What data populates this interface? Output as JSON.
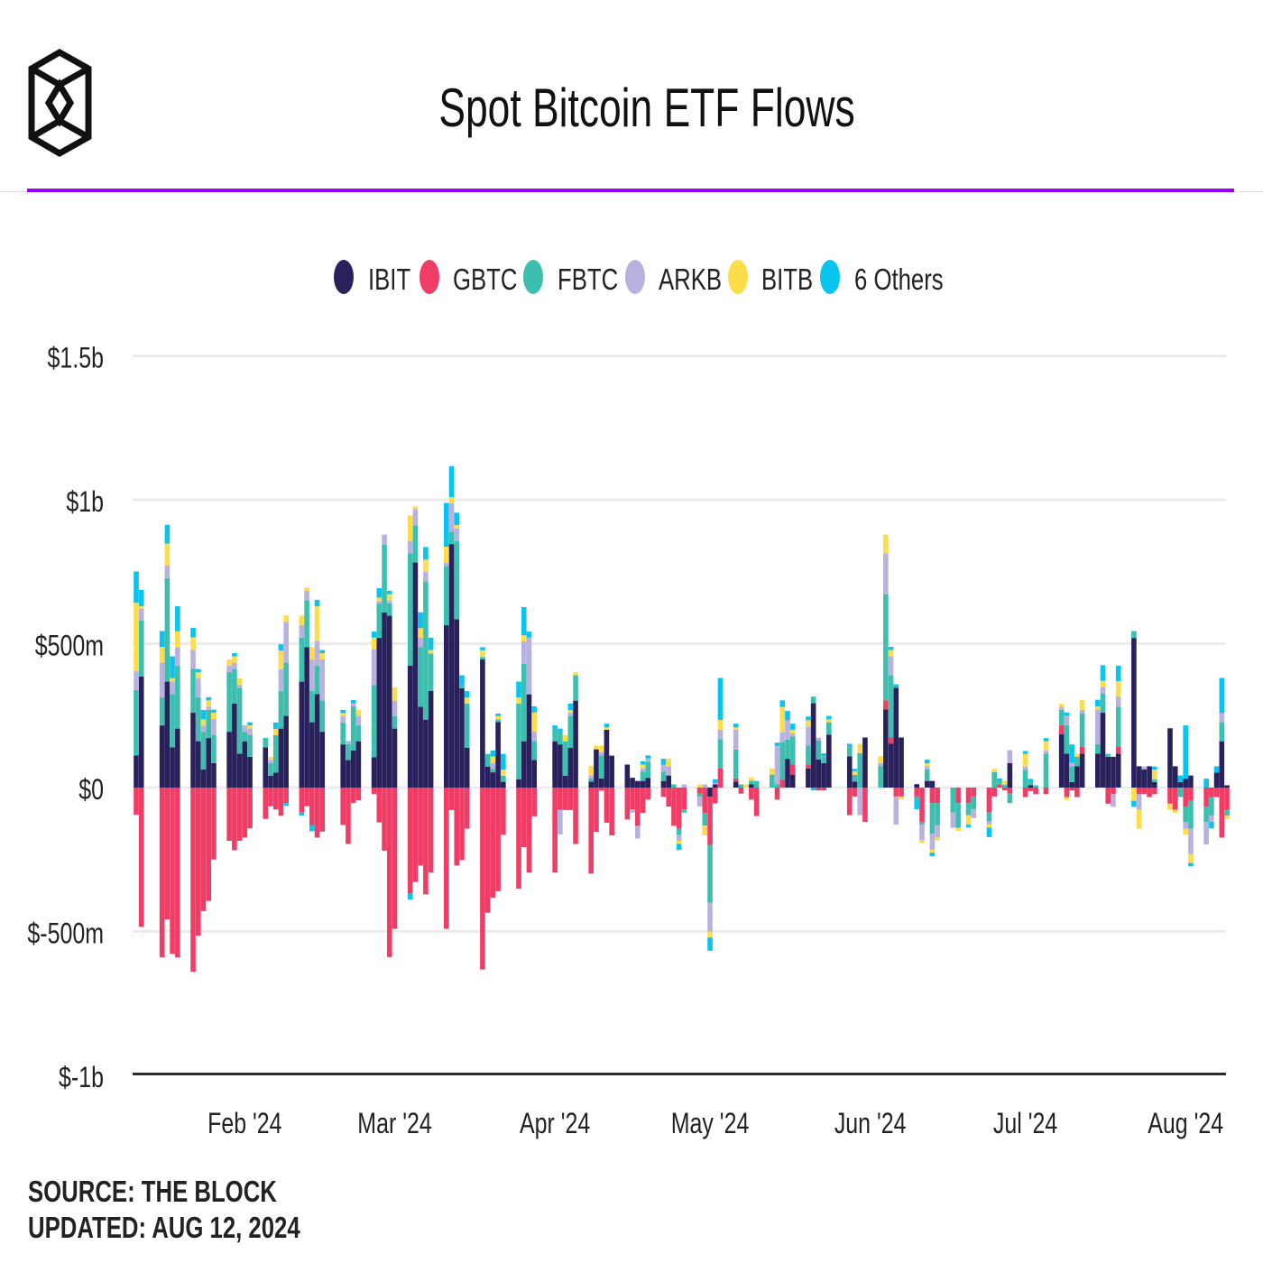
{
  "header": {
    "title": "Spot Bitcoin ETF Flows",
    "logo": "the-block-hexagon-logo",
    "accent_line_color": "#9900ff"
  },
  "footer": {
    "source": "SOURCE: THE BLOCK",
    "updated": "UPDATED: AUG 12, 2024"
  },
  "chart_data": {
    "type": "bar",
    "stacked": true,
    "title": "Spot Bitcoin ETF Flows",
    "unit": "USD millions",
    "xlabel": "",
    "ylabel": "",
    "ylim": [
      -1000,
      1500
    ],
    "grid": true,
    "legend_position": "top",
    "series": [
      {
        "name": "IBIT",
        "color": "#28215c"
      },
      {
        "name": "GBTC",
        "color": "#f03d66"
      },
      {
        "name": "FBTC",
        "color": "#3dbfb0"
      },
      {
        "name": "ARKB",
        "color": "#b8b2e0"
      },
      {
        "name": "BITB",
        "color": "#fddd4a"
      },
      {
        "name": "6 Others",
        "color": "#08c4ee"
      }
    ],
    "y_ticks": [
      {
        "value": 1500,
        "label": "$1.5b"
      },
      {
        "value": 1000,
        "label": "$1b"
      },
      {
        "value": 500,
        "label": "$500m"
      },
      {
        "value": 0,
        "label": "$0"
      },
      {
        "value": -500,
        "label": "$-500m"
      },
      {
        "value": -1000,
        "label": "$-1b"
      }
    ],
    "x_ticks": [
      {
        "date": "2024-02-01",
        "label": "Feb '24"
      },
      {
        "date": "2024-03-01",
        "label": "Mar '24"
      },
      {
        "date": "2024-04-01",
        "label": "Apr '24"
      },
      {
        "date": "2024-05-01",
        "label": "May '24"
      },
      {
        "date": "2024-06-01",
        "label": "Jun '24"
      },
      {
        "date": "2024-07-01",
        "label": "Jul '24"
      },
      {
        "date": "2024-08-01",
        "label": "Aug '24"
      }
    ],
    "row_columns": [
      "date",
      "IBIT",
      "GBTC",
      "FBTC",
      "ARKB",
      "BITB",
      "6 Others"
    ],
    "rows": [
      [
        "2024-01-11",
        112,
        -95,
        227,
        65,
        238,
        109
      ],
      [
        "2024-01-12",
        386,
        -484,
        195,
        41,
        8,
        57
      ],
      [
        "2024-01-16",
        216,
        -590,
        98,
        120,
        55,
        55
      ],
      [
        "2024-01-17",
        368,
        -458,
        360,
        44,
        76,
        65
      ],
      [
        "2024-01-18",
        140,
        -578,
        185,
        44,
        11,
        76
      ],
      [
        "2024-01-19",
        205,
        -590,
        218,
        65,
        55,
        87
      ],
      [
        "2024-01-22",
        260,
        -640,
        153,
        65,
        44,
        33
      ],
      [
        "2024-01-23",
        161,
        -515,
        153,
        65,
        22,
        11
      ],
      [
        "2024-01-24",
        63,
        -429,
        130,
        22,
        22,
        33
      ],
      [
        "2024-01-25",
        172,
        -394,
        98,
        11,
        22,
        11
      ],
      [
        "2024-01-26",
        85,
        -250,
        98,
        55,
        22,
        11
      ],
      [
        "2024-01-29",
        194,
        -185,
        207,
        22,
        22,
        0
      ],
      [
        "2024-01-30",
        292,
        -218,
        120,
        22,
        22,
        11
      ],
      [
        "2024-01-31",
        118,
        -185,
        229,
        11,
        22,
        0
      ],
      [
        "2024-02-01",
        161,
        -174,
        33,
        22,
        0,
        0
      ],
      [
        "2024-02-02",
        107,
        -142,
        76,
        22,
        11,
        11
      ],
      [
        "2024-02-05",
        140,
        -109,
        33,
        0,
        0,
        0
      ],
      [
        "2024-02-06",
        41,
        -65,
        44,
        11,
        11,
        0
      ],
      [
        "2024-02-07",
        52,
        -76,
        130,
        0,
        22,
        22
      ],
      [
        "2024-02-08",
        205,
        -98,
        130,
        76,
        65,
        22
      ],
      [
        "2024-02-09",
        249,
        -54,
        185,
        142,
        22,
        -10
      ],
      [
        "2024-02-12",
        368,
        -87,
        153,
        44,
        33,
        -11
      ],
      [
        "2024-02-13",
        488,
        -65,
        163,
        33,
        11,
        0
      ],
      [
        "2024-02-14",
        227,
        -130,
        109,
        109,
        44,
        -22
      ],
      [
        "2024-02-15",
        325,
        -174,
        98,
        87,
        120,
        22
      ],
      [
        "2024-02-16",
        194,
        -153,
        109,
        142,
        22,
        11
      ],
      [
        "2024-02-20",
        150,
        -130,
        76,
        22,
        11,
        11
      ],
      [
        "2024-02-21",
        96,
        -196,
        55,
        11,
        0,
        0
      ],
      [
        "2024-02-22",
        129,
        -54,
        153,
        11,
        0,
        11
      ],
      [
        "2024-02-23",
        161,
        -44,
        55,
        33,
        22,
        0
      ],
      [
        "2024-02-26",
        105,
        -23,
        252,
        123,
        41,
        21
      ],
      [
        "2024-02-27",
        520,
        -121,
        119,
        9,
        12,
        33
      ],
      [
        "2024-02-28",
        608,
        -219,
        236,
        35,
        0,
        0
      ],
      [
        "2024-02-29",
        597,
        -589,
        43,
        9,
        23,
        12
      ],
      [
        "2024-03-01",
        205,
        -491,
        43,
        54,
        46,
        0
      ],
      [
        "2024-03-04",
        424,
        -368,
        390,
        44,
        88,
        -21
      ],
      [
        "2024-03-05",
        782,
        -328,
        129,
        57,
        9,
        0
      ],
      [
        "2024-03-06",
        281,
        -271,
        207,
        33,
        33,
        55
      ],
      [
        "2024-03-07",
        236,
        -371,
        480,
        33,
        43,
        44
      ],
      [
        "2024-03-08",
        336,
        -295,
        130,
        0,
        12,
        43
      ],
      [
        "2024-03-11",
        564,
        -491,
        206,
        12,
        55,
        152
      ],
      [
        "2024-03-12",
        846,
        -78,
        43,
        99,
        21,
        108
      ],
      [
        "2024-03-13",
        585,
        -271,
        271,
        44,
        12,
        43
      ],
      [
        "2024-03-14",
        345,
        -252,
        12,
        0,
        0,
        33
      ],
      [
        "2024-03-15",
        138,
        -143,
        154,
        0,
        21,
        22
      ],
      [
        "2024-03-18",
        445,
        -632,
        9,
        0,
        23,
        11
      ],
      [
        "2024-03-19",
        73,
        -435,
        44,
        0,
        0,
        0
      ],
      [
        "2024-03-20",
        53,
        -383,
        12,
        20,
        23,
        21
      ],
      [
        "2024-03-21",
        228,
        -360,
        9,
        0,
        11,
        9
      ],
      [
        "2024-03-22",
        20,
        -164,
        21,
        0,
        21,
        55
      ],
      [
        "2024-03-25",
        29,
        -351,
        263,
        0,
        21,
        55
      ],
      [
        "2024-03-26",
        161,
        -207,
        269,
        78,
        21,
        98
      ],
      [
        "2024-03-27",
        324,
        -295,
        0,
        197,
        0,
        21
      ],
      [
        "2024-03-28",
        96,
        -100,
        66,
        32,
        67,
        21
      ],
      [
        "2024-04-01",
        161,
        -295,
        43,
        0,
        0,
        12
      ],
      [
        "2024-04-02",
        150,
        -78,
        43,
        -85,
        0,
        12
      ],
      [
        "2024-04-03",
        41,
        -78,
        120,
        0,
        22,
        0
      ],
      [
        "2024-04-04",
        138,
        -78,
        110,
        12,
        9,
        23
      ],
      [
        "2024-04-05",
        302,
        -196,
        88,
        0,
        11,
        0
      ],
      [
        "2024-04-08",
        21,
        -299,
        10,
        11,
        34,
        0
      ],
      [
        "2024-04-09",
        133,
        -154,
        0,
        0,
        13,
        0
      ],
      [
        "2024-04-10",
        32,
        -11,
        80,
        11,
        23,
        0
      ],
      [
        "2024-04-11",
        201,
        -122,
        0,
        0,
        8,
        13
      ],
      [
        "2024-04-12",
        111,
        -166,
        0,
        0,
        0,
        0
      ],
      [
        "2024-04-15",
        80,
        -111,
        0,
        0,
        0,
        0
      ],
      [
        "2024-04-16",
        34,
        -76,
        0,
        -11,
        0,
        0
      ],
      [
        "2024-04-17",
        23,
        -133,
        0,
        -44,
        0,
        0
      ],
      [
        "2024-04-18",
        23,
        -88,
        32,
        11,
        14,
        11
      ],
      [
        "2024-04-19",
        34,
        -42,
        56,
        11,
        0,
        11
      ],
      [
        "2024-04-22",
        23,
        -32,
        32,
        24,
        0,
        21
      ],
      [
        "2024-04-23",
        42,
        -66,
        0,
        32,
        27,
        0
      ],
      [
        "2024-04-24",
        0,
        -133,
        11,
        0,
        0,
        0
      ],
      [
        "2024-04-25",
        0,
        -143,
        -21,
        -21,
        -11,
        -21
      ],
      [
        "2024-04-26",
        0,
        -76,
        -11,
        11,
        0,
        0
      ],
      [
        "2024-04-29",
        0,
        -21,
        -11,
        -34,
        11,
        0
      ],
      [
        "2024-04-30",
        0,
        -88,
        -44,
        11,
        -34,
        0
      ],
      [
        "2024-05-01",
        -32,
        -167,
        -201,
        -100,
        -21,
        -46
      ],
      [
        "2024-05-02",
        11,
        -55,
        0,
        5,
        0,
        13
      ],
      [
        "2024-05-03",
        0,
        66,
        102,
        33,
        34,
        146
      ],
      [
        "2024-05-06",
        21,
        11,
        100,
        69,
        8,
        13
      ],
      [
        "2024-05-07",
        0,
        -21,
        11,
        0,
        0,
        0
      ],
      [
        "2024-05-08",
        0,
        0,
        0,
        0,
        11,
        0
      ],
      [
        "2024-05-09",
        11,
        -42,
        13,
        0,
        11,
        0
      ],
      [
        "2024-05-10",
        0,
        -99,
        23,
        0,
        0,
        0
      ],
      [
        "2024-05-13",
        0,
        0,
        45,
        0,
        22,
        0
      ],
      [
        "2024-05-14",
        0,
        -42,
        11,
        134,
        0,
        11
      ],
      [
        "2024-05-15",
        0,
        27,
        131,
        34,
        88,
        23
      ],
      [
        "2024-05-16",
        100,
        0,
        67,
        67,
        0,
        32
      ],
      [
        "2024-05-17",
        45,
        35,
        97,
        11,
        13,
        21
      ],
      [
        "2024-05-20",
        66,
        14,
        66,
        65,
        23,
        13
      ],
      [
        "2024-05-21",
        293,
        0,
        23,
        0,
        0,
        -10
      ],
      [
        "2024-05-22",
        98,
        -10,
        65,
        10,
        0,
        0
      ],
      [
        "2024-05-23",
        85,
        -10,
        24,
        0,
        0,
        10
      ],
      [
        "2024-05-24",
        184,
        0,
        43,
        0,
        10,
        12
      ],
      [
        "2024-05-28",
        109,
        -96,
        31,
        0,
        0,
        12
      ],
      [
        "2024-05-29",
        21,
        -31,
        23,
        0,
        13,
        8
      ],
      [
        "2024-05-30",
        0,
        0,
        119,
        -96,
        33,
        0
      ],
      [
        "2024-05-31",
        174,
        -119,
        0,
        0,
        0,
        0
      ],
      [
        "2024-06-03",
        0,
        0,
        75,
        10,
        24,
        0
      ],
      [
        "2024-06-04",
        271,
        32,
        369,
        142,
        65,
        0
      ],
      [
        "2024-06-05",
        152,
        22,
        216,
        67,
        21,
        11
      ],
      [
        "2024-06-06",
        347,
        -31,
        0,
        -98,
        0,
        12
      ],
      [
        "2024-06-07",
        174,
        -31,
        0,
        0,
        -10,
        0
      ],
      [
        "2024-06-10",
        12,
        -31,
        -12,
        0,
        0,
        -32
      ],
      [
        "2024-06-11",
        0,
        -119,
        -10,
        -54,
        -10,
        0
      ],
      [
        "2024-06-12",
        23,
        0,
        41,
        10,
        10,
        13
      ],
      [
        "2024-06-13",
        23,
        -54,
        -107,
        -55,
        -10,
        -12
      ],
      [
        "2024-06-14",
        0,
        -54,
        -76,
        -43,
        -10,
        0
      ],
      [
        "2024-06-17",
        0,
        0,
        -86,
        -54,
        0,
        0
      ],
      [
        "2024-06-18",
        0,
        -54,
        -86,
        0,
        -10,
        0
      ],
      [
        "2024-06-20",
        0,
        -54,
        -42,
        0,
        -33,
        -10
      ],
      [
        "2024-06-21",
        0,
        -31,
        -44,
        -31,
        0,
        0
      ],
      [
        "2024-06-24",
        0,
        -86,
        -31,
        -12,
        -10,
        -33
      ],
      [
        "2024-06-25",
        0,
        -31,
        54,
        0,
        11,
        0
      ],
      [
        "2024-06-26",
        0,
        10,
        12,
        0,
        0,
        10
      ],
      [
        "2024-06-27",
        0,
        -10,
        10,
        0,
        12,
        0
      ],
      [
        "2024-06-28",
        85,
        -21,
        -33,
        45,
        0,
        0
      ],
      [
        "2024-07-01",
        0,
        -33,
        62,
        11,
        44,
        10
      ],
      [
        "2024-07-02",
        8,
        -12,
        12,
        0,
        0,
        10
      ],
      [
        "2024-07-03",
        0,
        -23,
        8,
        0,
        0,
        0
      ],
      [
        "2024-07-05",
        0,
        -23,
        118,
        10,
        33,
        11
      ],
      [
        "2024-07-08",
        185,
        31,
        54,
        11,
        10,
        0
      ],
      [
        "2024-07-09",
        118,
        -33,
        99,
        33,
        -10,
        11
      ],
      [
        "2024-07-10",
        19,
        -10,
        55,
        12,
        0,
        64
      ],
      [
        "2024-07-11",
        74,
        -33,
        33,
        0,
        10,
        0
      ],
      [
        "2024-07-12",
        118,
        23,
        117,
        12,
        34,
        0
      ],
      [
        "2024-07-15",
        118,
        0,
        33,
        120,
        11,
        23
      ],
      [
        "2024-07-16",
        260,
        0,
        66,
        23,
        22,
        54
      ],
      [
        "2024-07-17",
        107,
        -56,
        10,
        0,
        0,
        0
      ],
      [
        "2024-07-18",
        107,
        -23,
        0,
        -44,
        0,
        0
      ],
      [
        "2024-07-19",
        118,
        23,
        140,
        34,
        55,
        54
      ],
      [
        "2024-07-22",
        520,
        0,
        24,
        0,
        -46,
        -21
      ],
      [
        "2024-07-23",
        74,
        -23,
        0,
        -54,
        -66,
        0
      ],
      [
        "2024-07-24",
        63,
        -23,
        0,
        10,
        0,
        0
      ],
      [
        "2024-07-25",
        74,
        -33,
        0,
        0,
        0,
        0
      ],
      [
        "2024-07-26",
        19,
        -23,
        10,
        0,
        33,
        11
      ],
      [
        "2024-07-29",
        206,
        -56,
        0,
        0,
        -21,
        0
      ],
      [
        "2024-07-30",
        74,
        -77,
        0,
        0,
        -10,
        0
      ],
      [
        "2024-07-31",
        19,
        0,
        -33,
        0,
        0,
        23
      ],
      [
        "2024-08-01",
        31,
        -67,
        -53,
        -23,
        -21,
        185
      ],
      [
        "2024-08-02",
        42,
        -46,
        -97,
        -88,
        -31,
        -12
      ],
      [
        "2024-08-05",
        0,
        -67,
        -53,
        -78,
        0,
        31
      ],
      [
        "2024-08-06",
        0,
        -33,
        -64,
        -22,
        0,
        -23
      ],
      [
        "2024-08-07",
        52,
        -33,
        0,
        0,
        0,
        22
      ],
      [
        "2024-08-08",
        161,
        -174,
        66,
        33,
        0,
        121
      ],
      [
        "2024-08-09",
        8,
        -77,
        -21,
        0,
        -11,
        0
      ]
    ]
  }
}
